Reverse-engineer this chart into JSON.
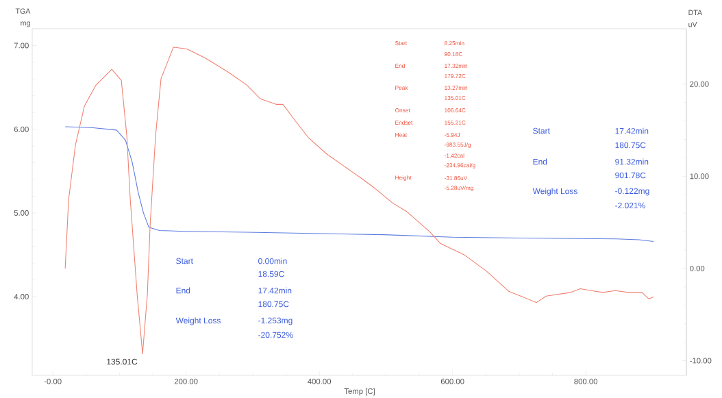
{
  "chart_data": {
    "type": "line",
    "ylabel": "TGA mg",
    "y2label": "DTA uV",
    "xlabel": "Temp [C]",
    "xlim": [
      -31,
      951
    ],
    "ylim": [
      3.06,
      7.2
    ],
    "y2lim": [
      -11.6,
      26.0
    ],
    "xticks": [
      {
        "value": 0,
        "label": "-0.00"
      },
      {
        "value": 200,
        "label": "200.00"
      },
      {
        "value": 400,
        "label": "400.00"
      },
      {
        "value": 600,
        "label": "600.00"
      },
      {
        "value": 800,
        "label": "800.00"
      }
    ],
    "yticks": [
      {
        "value": 4,
        "label": "4.00"
      },
      {
        "value": 5,
        "label": "5.00"
      },
      {
        "value": 6,
        "label": "6.00"
      },
      {
        "value": 7,
        "label": "7.00"
      }
    ],
    "y2ticks": [
      {
        "value": -10,
        "label": "-10.00"
      },
      {
        "value": 0,
        "label": "0.00"
      },
      {
        "value": 10,
        "label": "10.00"
      },
      {
        "value": 20,
        "label": "20.00"
      }
    ],
    "series": [
      {
        "color": "#5b7be0",
        "x": [
          18.6,
          57.6,
          95.6,
          109,
          119,
          128,
          136,
          144,
          160,
          198,
          291,
          497,
          600,
          702,
          846,
          880,
          901.78
        ],
        "values": [
          6.03,
          6.02,
          5.99,
          5.87,
          5.61,
          5.25,
          5.0,
          4.83,
          4.79,
          4.78,
          4.77,
          4.74,
          4.71,
          4.7,
          4.69,
          4.68,
          4.66
        ]
      },
      {
        "color": "#f08070",
        "axis": "y2",
        "x": [
          18.5,
          23.7,
          33.9,
          47.3,
          64.8,
          88.4,
          102.8,
          111,
          116.2,
          126.5,
          134.7,
          141.9,
          146,
          154.2,
          162.4,
          181,
          201.5,
          229.3,
          263.2,
          291,
          311.6,
          335.2,
          345.5,
          363,
          383.5,
          411.3,
          435,
          462.7,
          483.3,
          510,
          530.6,
          565.6,
          582,
          617,
          651,
          684.8,
          702.3,
          726,
          740.4,
          777.4,
          791.8,
          808.2,
          825.7,
          844.2,
          863.8,
          884.3,
          894.6,
          901.78
        ],
        "values": [
          0.0,
          7.5,
          13.4,
          17.6,
          19.9,
          21.6,
          20.4,
          14.4,
          7.5,
          -2.8,
          -9.25,
          -2.8,
          4.7,
          14.4,
          20.6,
          24.0,
          23.8,
          22.8,
          21.3,
          19.9,
          18.4,
          17.8,
          17.8,
          16.1,
          14.2,
          12.4,
          11.2,
          9.8,
          8.7,
          7.1,
          6.2,
          4.0,
          2.7,
          1.5,
          -0.3,
          -2.5,
          -3.0,
          -3.7,
          -3.0,
          -2.6,
          -2.2,
          -2.4,
          -2.6,
          -2.4,
          -2.6,
          -2.6,
          -3.3,
          -3.1
        ]
      }
    ],
    "annotations": [
      "Start",
      "8.25min",
      "90.18C",
      "End",
      "17.32min",
      "179.72C",
      "Peak",
      "13.27min",
      "135.01C",
      "Onset",
      "106.64C",
      "Endset",
      "155.21C",
      "Heat",
      "-5.94J",
      "-983.55J/g",
      "-1.42cal",
      "-234.96cal/g",
      "Height",
      "-31.86uV",
      "-5.28uV/mg",
      "Start",
      "17.42min",
      "180.75C",
      "End",
      "91.32min",
      "901.78C",
      "Weight Loss",
      "-0.122mg",
      "-2.021%",
      "Start",
      "0.00min",
      "18.59C",
      "End",
      "17.42min",
      "180.75C",
      "Weight Loss",
      "-1.253mg",
      "-20.752%",
      "135.01C"
    ]
  }
}
